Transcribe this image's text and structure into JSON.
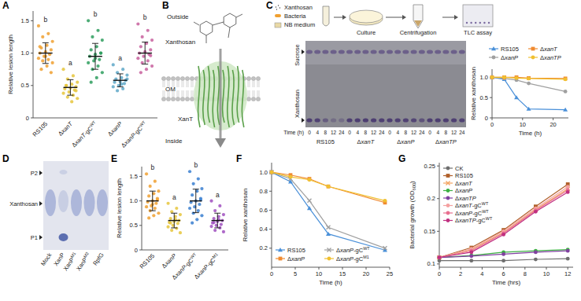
{
  "panel_labels": [
    "A",
    "B",
    "C",
    "D",
    "E",
    "F",
    "G"
  ],
  "chart_data": [
    {
      "type": "strip",
      "y_label": "Relative lesion length",
      "categories": [
        "RS105",
        "ΔxanT",
        "ΔxanT-gCWT",
        "ΔxanP",
        "ΔxanP-gCWT"
      ],
      "colors": [
        "#f0a030",
        "#e6c63c",
        "#2e9e5e",
        "#5fa8c8",
        "#c8609e"
      ],
      "points": [
        [
          1.42,
          1.3,
          1.25,
          1.18,
          1.12,
          1.08,
          1.05,
          1.02,
          1.0,
          0.98,
          0.95,
          0.92,
          0.9,
          0.88,
          0.85,
          0.8,
          0.75,
          0.7,
          0.95,
          1.1
        ],
        [
          0.75,
          0.65,
          0.6,
          0.55,
          0.52,
          0.5,
          0.48,
          0.46,
          0.45,
          0.43,
          0.4,
          0.38,
          0.35,
          0.32,
          0.3,
          0.25,
          0.5,
          0.42
        ],
        [
          1.5,
          1.35,
          1.25,
          1.2,
          1.1,
          1.05,
          1.0,
          0.98,
          0.95,
          0.9,
          0.88,
          0.85,
          0.8,
          0.75,
          0.7,
          0.62,
          0.55,
          1.0,
          0.92
        ],
        [
          0.82,
          0.75,
          0.7,
          0.66,
          0.62,
          0.6,
          0.58,
          0.56,
          0.55,
          0.53,
          0.5,
          0.48,
          0.45,
          0.42,
          0.6,
          0.52
        ],
        [
          1.45,
          1.35,
          1.25,
          1.2,
          1.15,
          1.1,
          1.05,
          1.02,
          1.0,
          0.98,
          0.95,
          0.92,
          0.88,
          0.85,
          0.8,
          0.75,
          0.7,
          0.96
        ]
      ],
      "values": [
        1.0,
        0.47,
        0.95,
        0.58,
        1.0
      ],
      "errors": [
        0.16,
        0.12,
        0.2,
        0.1,
        0.17
      ],
      "letters": [
        "b",
        "a",
        "b",
        "a",
        "b"
      ],
      "ylim": [
        0,
        1.65
      ],
      "yticks": [
        0,
        0.5,
        {
          "value": 1,
          "label": "1.0"
        },
        1.5
      ]
    },
    {
      "type": "line",
      "x_label": "Time (h)",
      "y_label": "Relative xanthosan",
      "x": [
        0,
        4,
        8,
        12,
        24
      ],
      "series": [
        {
          "name": "RS105",
          "color": "#4a90d9",
          "marker": "triangle",
          "values": [
            1.0,
            0.95,
            0.5,
            0.22,
            0.2
          ]
        },
        {
          "name": "ΔxanP",
          "color": "#a0a0a0",
          "marker": "circle",
          "values": [
            1.0,
            0.97,
            0.93,
            0.85,
            0.65
          ]
        },
        {
          "name": "ΔxanT",
          "color": "#f08a30",
          "marker": "square",
          "values": [
            1.0,
            1.0,
            1.0,
            0.98,
            0.97
          ]
        },
        {
          "name": "ΔxanTP",
          "color": "#f0c030",
          "marker": "circle",
          "values": [
            1.0,
            1.0,
            0.98,
            0.97,
            0.95
          ]
        }
      ],
      "xlim": [
        0,
        25
      ],
      "xticks": [
        0,
        10,
        20
      ],
      "ylim": [
        0,
        1.2
      ],
      "yticks": [
        0,
        0.5,
        {
          "value": 1,
          "label": "1.0"
        }
      ],
      "legend": "top"
    },
    {
      "type": "strip",
      "y_label": "Relative lesion length",
      "categories": [
        "RS105",
        "ΔxanP",
        "ΔxanP-gCWT",
        "ΔxanP-gCM1"
      ],
      "colors": [
        "#f0a030",
        "#e6c63c",
        "#3a7fd0",
        "#a050c0"
      ],
      "points": [
        [
          1.55,
          1.4,
          1.3,
          1.2,
          1.15,
          1.1,
          1.05,
          1.0,
          0.98,
          0.95,
          0.9,
          0.88,
          0.85,
          0.8,
          0.75,
          0.7,
          0.65,
          1.02,
          0.93
        ],
        [
          0.95,
          0.85,
          0.78,
          0.72,
          0.68,
          0.64,
          0.6,
          0.58,
          0.56,
          0.54,
          0.5,
          0.47,
          0.44,
          0.4,
          0.35,
          0.62,
          0.55
        ],
        [
          1.6,
          1.45,
          1.35,
          1.25,
          1.2,
          1.12,
          1.05,
          1.0,
          0.97,
          0.93,
          0.88,
          0.85,
          0.8,
          0.75,
          0.7,
          0.62,
          0.55,
          1.02
        ],
        [
          1.0,
          0.9,
          0.8,
          0.72,
          0.68,
          0.64,
          0.6,
          0.58,
          0.55,
          0.52,
          0.5,
          0.48,
          0.45,
          0.4,
          0.37,
          0.62,
          0.56
        ]
      ],
      "values": [
        1.0,
        0.6,
        1.0,
        0.6
      ],
      "errors": [
        0.2,
        0.15,
        0.24,
        0.15
      ],
      "letters": [
        "b",
        "a",
        "b",
        "a"
      ],
      "ylim": [
        0,
        1.7
      ],
      "yticks": [
        0,
        0.5,
        {
          "value": 1,
          "label": "1.0"
        },
        1.5
      ]
    },
    {
      "type": "line",
      "x_label": "Time (h)",
      "y_label": "Relative xanthosan",
      "x": [
        0,
        4,
        8,
        12,
        24
      ],
      "series": [
        {
          "name": "RS105",
          "color": "#4a90d9",
          "marker": "triangle",
          "values": [
            1.0,
            0.9,
            0.62,
            0.35,
            0.18
          ]
        },
        {
          "name": "ΔxanP",
          "color": "#f08a30",
          "marker": "square",
          "values": [
            1.0,
            0.97,
            0.93,
            0.85,
            0.68
          ]
        },
        {
          "name": "ΔxanP-gCWT",
          "color": "#a0a0a0",
          "marker": "x",
          "values": [
            1.0,
            0.93,
            0.7,
            0.42,
            0.2
          ]
        },
        {
          "name": "ΔxanP-gCM1",
          "color": "#f0c030",
          "marker": "circle",
          "values": [
            1.0,
            0.95,
            0.92,
            0.85,
            0.7
          ]
        }
      ],
      "xlim": [
        0,
        25
      ],
      "xticks": [
        0,
        5,
        10,
        15,
        20,
        25
      ],
      "ylim": [
        0,
        1.1
      ],
      "yticks": [
        0.2,
        0.4,
        0.6,
        0.8,
        {
          "value": 1,
          "label": "1.0"
        }
      ],
      "legend": "lower left"
    },
    {
      "type": "line",
      "x_label": "Time (hrs)",
      "y_label": "Bacterial growth (OD600)",
      "x": [
        0,
        3,
        6,
        9,
        12
      ],
      "series": [
        {
          "name": "CK",
          "color": "#6e6e6e",
          "marker": "circle",
          "values": [
            0.105,
            0.105,
            0.105,
            0.107,
            0.108
          ]
        },
        {
          "name": "RS105",
          "color": "#b0602a",
          "marker": "square",
          "values": [
            0.11,
            0.125,
            0.152,
            0.188,
            0.222
          ]
        },
        {
          "name": "ΔxanT",
          "color": "#f4a460",
          "marker": "x",
          "values": [
            0.11,
            0.122,
            0.148,
            0.183,
            0.215
          ]
        },
        {
          "name": "ΔxanP",
          "color": "#3cb043",
          "marker": "circle",
          "values": [
            0.11,
            0.113,
            0.118,
            0.12,
            0.122
          ]
        },
        {
          "name": "ΔxanTP",
          "color": "#8040a0",
          "marker": "circle",
          "values": [
            0.11,
            0.112,
            0.115,
            0.118,
            0.12
          ]
        },
        {
          "name": "ΔxanT-gCWT",
          "color": "#f4a0a0",
          "marker": "circle",
          "values": [
            0.11,
            0.123,
            0.15,
            0.185,
            0.218
          ]
        },
        {
          "name": "ΔxanP-gCWT",
          "color": "#e87090",
          "marker": "circle",
          "values": [
            0.11,
            0.12,
            0.147,
            0.182,
            0.213
          ]
        },
        {
          "name": "ΔxanTP-gCWT",
          "color": "#c03080",
          "marker": "circle",
          "values": [
            0.11,
            0.118,
            0.145,
            0.18,
            0.21
          ]
        }
      ],
      "xlim": [
        0,
        12.5
      ],
      "xticks": [
        0,
        2,
        4,
        6,
        8,
        10,
        12
      ],
      "ylim": [
        0.095,
        0.255
      ],
      "yticks": [
        0.1,
        0.15,
        0.2,
        0.25
      ],
      "legend": "upper left"
    }
  ],
  "panel_b": {
    "outside": "Outside",
    "inside": "Inside",
    "membrane": "OM",
    "molecule": "Xanthosan",
    "protein": "XanT"
  },
  "panel_c": {
    "inputs": [
      "Xanthosan",
      "Bacteria",
      "NB medium"
    ],
    "culture": "Culture",
    "centrifugation": "Centrifugation",
    "tlc": "TLC assay",
    "sucrose": "Sucrose",
    "xanthosan": "Xanthosan",
    "time_label": "Time (h)",
    "times": [
      0,
      4,
      8,
      12,
      24
    ],
    "strains": [
      "RS105",
      "ΔxanT",
      "ΔxanP",
      "ΔxanTP"
    ]
  },
  "panel_d": {
    "bands": [
      "P2",
      "Xanthosan",
      "P1"
    ],
    "lanes": [
      "Mock",
      "XanP",
      "XanPM1",
      "XanPM2",
      "RpfG"
    ]
  }
}
